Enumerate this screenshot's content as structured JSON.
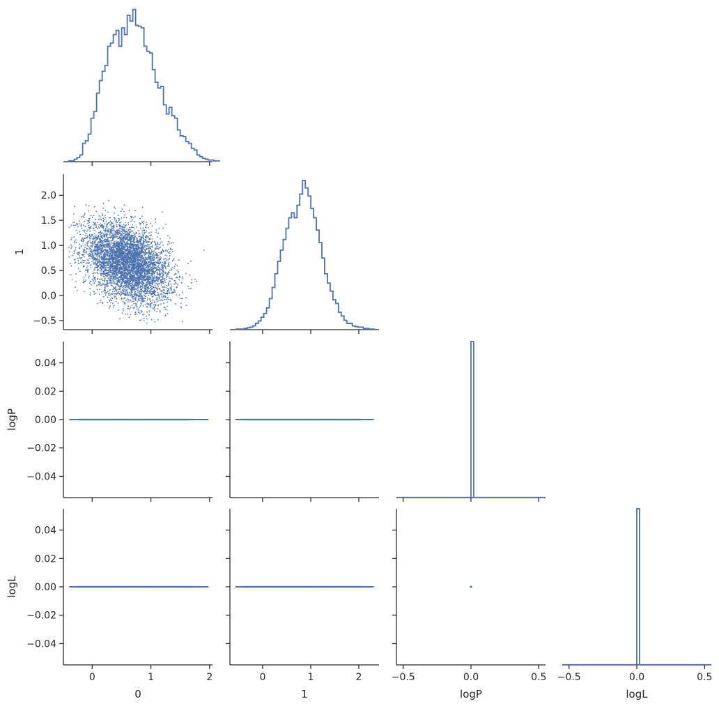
{
  "chart_data": [
    {
      "type": "histogram",
      "panel": "0-diag",
      "variable": "0",
      "xlim": [
        -0.49,
        2.05
      ],
      "xticks": [
        0,
        1,
        2
      ],
      "bins": {
        "start": -0.4,
        "width": 0.0475,
        "heights": [
          1,
          1,
          3,
          5,
          8,
          22,
          25,
          33,
          52,
          60,
          82,
          97,
          108,
          115,
          138,
          142,
          152,
          157,
          138,
          160,
          152,
          175,
          168,
          182,
          163,
          162,
          160,
          138,
          132,
          130,
          110,
          95,
          88,
          90,
          68,
          57,
          65,
          55,
          52,
          38,
          31,
          30,
          24,
          22,
          16,
          14,
          8,
          6,
          4,
          3,
          2,
          2,
          1,
          1
        ]
      },
      "ymax": 185,
      "color": "#4c72b0"
    },
    {
      "type": "scatter",
      "panel": "1-vs-0",
      "x_variable": "0",
      "y_variable": "1",
      "xlim": [
        -0.49,
        2.05
      ],
      "ylim": [
        -0.68,
        2.42
      ],
      "xticks": [
        0,
        1,
        2
      ],
      "yticks": [
        -0.5,
        0.0,
        0.5,
        1.0,
        1.5,
        2.0
      ],
      "ytick_labels": [
        "−0.5",
        "0.0",
        "0.5",
        "1.0",
        "1.5",
        "2.0"
      ],
      "ylabel": "1",
      "point_distribution": {
        "n": 5000,
        "x_mean": 0.6,
        "x_sd": 0.36,
        "y_mean": 0.65,
        "y_sd": 0.4,
        "corr": -0.38
      },
      "color": "#4c72b0"
    },
    {
      "type": "histogram",
      "panel": "1-diag",
      "variable": "1",
      "xlim": [
        -0.68,
        2.42
      ],
      "xticks": [
        0,
        1,
        2
      ],
      "bins": {
        "start": -0.55,
        "width": 0.0575,
        "heights": [
          1,
          1,
          1,
          2,
          3,
          4,
          6,
          10,
          14,
          20,
          26,
          35,
          50,
          68,
          90,
          110,
          128,
          145,
          163,
          180,
          188,
          180,
          200,
          218,
          240,
          228,
          215,
          195,
          180,
          160,
          140,
          115,
          90,
          75,
          62,
          48,
          42,
          28,
          22,
          15,
          10,
          10,
          6,
          5,
          4,
          4,
          2,
          2,
          1,
          1
        ]
      },
      "ymax": 250,
      "color": "#4c72b0"
    },
    {
      "type": "scatter",
      "panel": "logP-vs-0",
      "x_variable": "0",
      "y_variable": "logP",
      "xlim": [
        -0.49,
        2.05
      ],
      "ylim": [
        -0.055,
        0.055
      ],
      "yticks": [
        -0.04,
        -0.02,
        0.0,
        0.02,
        0.04
      ],
      "ytick_labels": [
        "−0.04",
        "−0.02",
        "0.00",
        "0.02",
        "0.04"
      ],
      "ylabel": "logP",
      "x_range": [
        -0.38,
        1.97
      ],
      "y_value": 0.0,
      "color": "#4c72b0"
    },
    {
      "type": "scatter",
      "panel": "logP-vs-1",
      "x_variable": "1",
      "y_variable": "logP",
      "xlim": [
        -0.68,
        2.42
      ],
      "ylim": [
        -0.055,
        0.055
      ],
      "x_range": [
        -0.55,
        2.3
      ],
      "y_value": 0.0,
      "color": "#4c72b0"
    },
    {
      "type": "histogram",
      "panel": "logP-diag",
      "variable": "logP",
      "xlim": [
        -0.55,
        0.55
      ],
      "xticks": [
        -0.5,
        0.0,
        0.5
      ],
      "bars": [
        {
          "x0": 0.0,
          "x1": 0.02,
          "height": 1
        }
      ],
      "color": "#4c72b0"
    },
    {
      "type": "scatter",
      "panel": "logL-vs-0",
      "x_variable": "0",
      "y_variable": "logL",
      "xlim": [
        -0.49,
        2.05
      ],
      "ylim": [
        -0.055,
        0.055
      ],
      "xticks": [
        0,
        1,
        2
      ],
      "yticks": [
        -0.04,
        -0.02,
        0.0,
        0.02,
        0.04
      ],
      "ytick_labels": [
        "−0.04",
        "−0.02",
        "0.00",
        "0.02",
        "0.04"
      ],
      "xlabel": "0",
      "ylabel": "logL",
      "x_range": [
        -0.38,
        1.97
      ],
      "y_value": 0.0,
      "color": "#4c72b0"
    },
    {
      "type": "scatter",
      "panel": "logL-vs-1",
      "x_variable": "1",
      "y_variable": "logL",
      "xlim": [
        -0.68,
        2.42
      ],
      "ylim": [
        -0.055,
        0.055
      ],
      "xticks": [
        0,
        1,
        2
      ],
      "xlabel": "1",
      "x_range": [
        -0.55,
        2.3
      ],
      "y_value": 0.0,
      "color": "#4c72b0"
    },
    {
      "type": "scatter",
      "panel": "logL-vs-logP",
      "x_variable": "logP",
      "y_variable": "logL",
      "xlim": [
        -0.55,
        0.55
      ],
      "ylim": [
        -0.055,
        0.055
      ],
      "xticks": [
        -0.5,
        0.0,
        0.5
      ],
      "xlabel": "logP",
      "points": [
        [
          0.0,
          0.0
        ]
      ],
      "color": "#4c72b0"
    },
    {
      "type": "histogram",
      "panel": "logL-diag",
      "variable": "logL",
      "xlim": [
        -0.55,
        0.55
      ],
      "xticks": [
        -0.5,
        0.0,
        0.5
      ],
      "xlabel": "logL",
      "bars": [
        {
          "x0": 0.0,
          "x1": 0.02,
          "height": 1
        }
      ],
      "color": "#4c72b0"
    }
  ],
  "tick_text": {
    "x_0_1_2": [
      "0",
      "1",
      "2"
    ],
    "x_pm05": [
      "−0.5",
      "0.0",
      "0.5"
    ]
  }
}
